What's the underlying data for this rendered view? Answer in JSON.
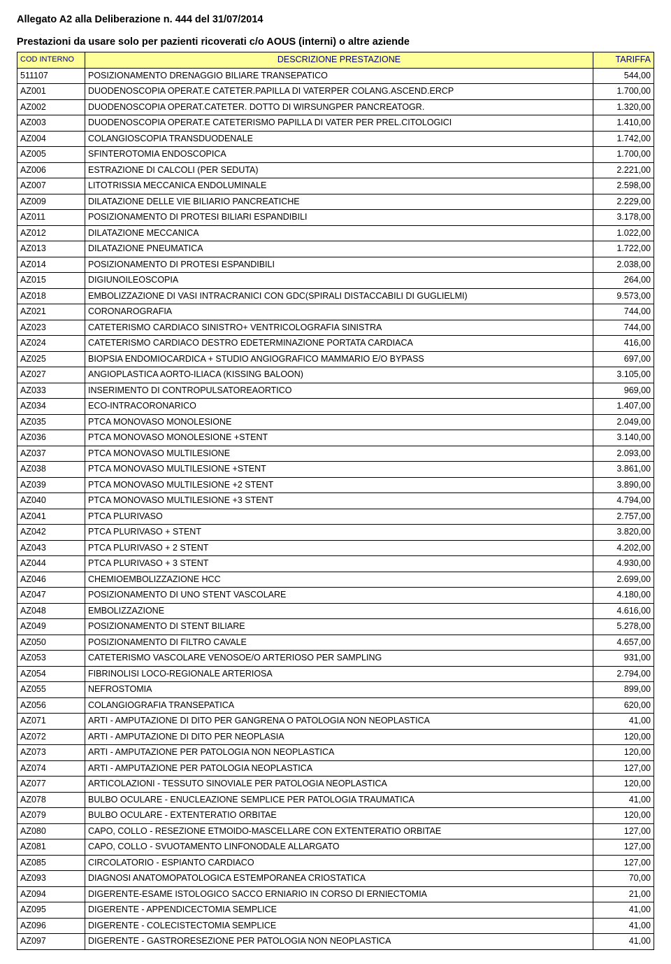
{
  "header": {
    "title": "Allegato A2 alla Deliberazione n. 444 del 31/07/2014",
    "subtitle": "Prestazioni da usare solo per pazienti ricoverati c/o AOUS (interni) o altre aziende"
  },
  "table": {
    "columns": [
      "COD INTERNO",
      "DESCRIZIONE PRESTAZIONE",
      "TARIFFA"
    ],
    "header_bg": "#ffff99",
    "header_color": "#000080",
    "rows": [
      [
        "511107",
        "POSIZIONAMENTO DRENAGGIO BILIARE TRANSEPATICO",
        "544,00"
      ],
      [
        "AZ001",
        "DUODENOSCOPIA OPERAT.E CATETER.PAPILLA DI VATERPER COLANG.ASCEND.ERCP",
        "1.700,00"
      ],
      [
        "AZ002",
        "DUODENOSCOPIA OPERAT.CATETER. DOTTO DI WIRSUNGPER PANCREATOGR.",
        "1.320,00"
      ],
      [
        "AZ003",
        "DUODENOSCOPIA OPERAT.E CATETERISMO PAPILLA DI VATER PER PREL.CITOLOGICI",
        "1.410,00"
      ],
      [
        "AZ004",
        "COLANGIOSCOPIA TRANSDUODENALE",
        "1.742,00"
      ],
      [
        "AZ005",
        "SFINTEROTOMIA ENDOSCOPICA",
        "1.700,00"
      ],
      [
        "AZ006",
        "ESTRAZIONE DI CALCOLI (PER SEDUTA)",
        "2.221,00"
      ],
      [
        "AZ007",
        "LITOTRISSIA MECCANICA ENDOLUMINALE",
        "2.598,00"
      ],
      [
        "AZ009",
        "DILATAZIONE DELLE VIE BILIARIO PANCREATICHE",
        "2.229,00"
      ],
      [
        "AZ011",
        "POSIZIONAMENTO DI  PROTESI BILIARI ESPANDIBILI",
        "3.178,00"
      ],
      [
        "AZ012",
        "DILATAZIONE MECCANICA",
        "1.022,00"
      ],
      [
        "AZ013",
        "DILATAZIONE PNEUMATICA",
        "1.722,00"
      ],
      [
        "AZ014",
        "POSIZIONAMENTO DI PROTESI ESPANDIBILI",
        "2.038,00"
      ],
      [
        "AZ015",
        "DIGIUNOILEOSCOPIA",
        "264,00"
      ],
      [
        "AZ018",
        "EMBOLIZZAZIONE DI VASI INTRACRANICI CON GDC(SPIRALI DISTACCABILI DI GUGLIELMI)",
        "9.573,00"
      ],
      [
        "AZ021",
        "CORONAROGRAFIA",
        "744,00"
      ],
      [
        "AZ023",
        "CATETERISMO CARDIACO SINISTRO+ VENTRICOLOGRAFIA SINISTRA",
        "744,00"
      ],
      [
        "AZ024",
        "CATETERISMO CARDIACO DESTRO EDETERMINAZIONE PORTATA CARDIACA",
        "416,00"
      ],
      [
        "AZ025",
        "BIOPSIA ENDOMIOCARDICA + STUDIO ANGIOGRAFICO MAMMARIO E/O BYPASS",
        "697,00"
      ],
      [
        "AZ027",
        "ANGIOPLASTICA AORTO-ILIACA (KISSING BALOON)",
        "3.105,00"
      ],
      [
        "AZ033",
        "INSERIMENTO DI CONTROPULSATOREAORTICO",
        "969,00"
      ],
      [
        "AZ034",
        "ECO-INTRACORONARICO",
        "1.407,00"
      ],
      [
        "AZ035",
        "PTCA MONOVASO MONOLESIONE",
        "2.049,00"
      ],
      [
        "AZ036",
        "PTCA MONOVASO MONOLESIONE +STENT",
        "3.140,00"
      ],
      [
        "AZ037",
        "PTCA MONOVASO MULTILESIONE",
        "2.093,00"
      ],
      [
        "AZ038",
        "PTCA MONOVASO MULTILESIONE +STENT",
        "3.861,00"
      ],
      [
        "AZ039",
        "PTCA MONOVASO MULTILESIONE  +2 STENT",
        "3.890,00"
      ],
      [
        "AZ040",
        "PTCA MONOVASO MULTILESIONE   +3 STENT",
        "4.794,00"
      ],
      [
        "AZ041",
        "PTCA PLURIVASO",
        "2.757,00"
      ],
      [
        "AZ042",
        "PTCA PLURIVASO + STENT",
        "3.820,00"
      ],
      [
        "AZ043",
        "PTCA PLURIVASO + 2 STENT",
        "4.202,00"
      ],
      [
        "AZ044",
        "PTCA PLURIVASO + 3 STENT",
        "4.930,00"
      ],
      [
        "AZ046",
        "CHEMIOEMBOLIZZAZIONE  HCC",
        "2.699,00"
      ],
      [
        "AZ047",
        "POSIZIONAMENTO DI UNO STENT VASCOLARE",
        "4.180,00"
      ],
      [
        "AZ048",
        "EMBOLIZZAZIONE",
        "4.616,00"
      ],
      [
        "AZ049",
        "POSIZIONAMENTO DI STENT BILIARE",
        "5.278,00"
      ],
      [
        "AZ050",
        "POSIZIONAMENTO DI FILTRO CAVALE",
        "4.657,00"
      ],
      [
        "AZ053",
        "CATETERISMO VASCOLARE VENOSOE/O ARTERIOSO PER SAMPLING",
        "931,00"
      ],
      [
        "AZ054",
        "FIBRINOLISI LOCO-REGIONALE ARTERIOSA",
        "2.794,00"
      ],
      [
        "AZ055",
        "NEFROSTOMIA",
        "899,00"
      ],
      [
        "AZ056",
        "COLANGIOGRAFIA TRANSEPATICA",
        "620,00"
      ],
      [
        "AZ071",
        "ARTI - AMPUTAZIONE DI DITO PER GANGRENA O PATOLOGIA NON NEOPLASTICA",
        "41,00"
      ],
      [
        "AZ072",
        "ARTI - AMPUTAZIONE DI DITO PER NEOPLASIA",
        "120,00"
      ],
      [
        "AZ073",
        "ARTI - AMPUTAZIONE PER PATOLOGIA NON NEOPLASTICA",
        "120,00"
      ],
      [
        "AZ074",
        "ARTI - AMPUTAZIONE PER PATOLOGIA NEOPLASTICA",
        "127,00"
      ],
      [
        "AZ077",
        "ARTICOLAZIONI - TESSUTO SINOVIALE PER PATOLOGIA NEOPLASTICA",
        "120,00"
      ],
      [
        "AZ078",
        "BULBO OCULARE - ENUCLEAZIONE SEMPLICE PER PATOLOGIA TRAUMATICA",
        "41,00"
      ],
      [
        "AZ079",
        "BULBO OCULARE - EXTENTERATIO ORBITAE",
        "120,00"
      ],
      [
        "AZ080",
        "CAPO, COLLO - RESEZIONE ETMOIDO-MASCELLARE CON EXTENTERATIO ORBITAE",
        "127,00"
      ],
      [
        "AZ081",
        "CAPO, COLLO - SVUOTAMENTO LINFONODALE ALLARGATO",
        "127,00"
      ],
      [
        "AZ085",
        "CIRCOLATORIO - ESPIANTO CARDIACO",
        "127,00"
      ],
      [
        "AZ093",
        "DIAGNOSI ANATOMOPATOLOGICA ESTEMPORANEA CRIOSTATICA",
        "70,00"
      ],
      [
        "AZ094",
        "DIGERENTE-ESAME ISTOLOGICO SACCO ERNIARIO IN CORSO DI ERNIECTOMIA",
        "21,00"
      ],
      [
        "AZ095",
        "DIGERENTE - APPENDICECTOMIA SEMPLICE",
        "41,00"
      ],
      [
        "AZ096",
        "DIGERENTE - COLECISTECTOMIA SEMPLICE",
        "41,00"
      ],
      [
        "AZ097",
        "DIGERENTE - GASTRORESEZIONE PER PATOLOGIA NON NEOPLASTICA",
        "41,00"
      ]
    ]
  }
}
